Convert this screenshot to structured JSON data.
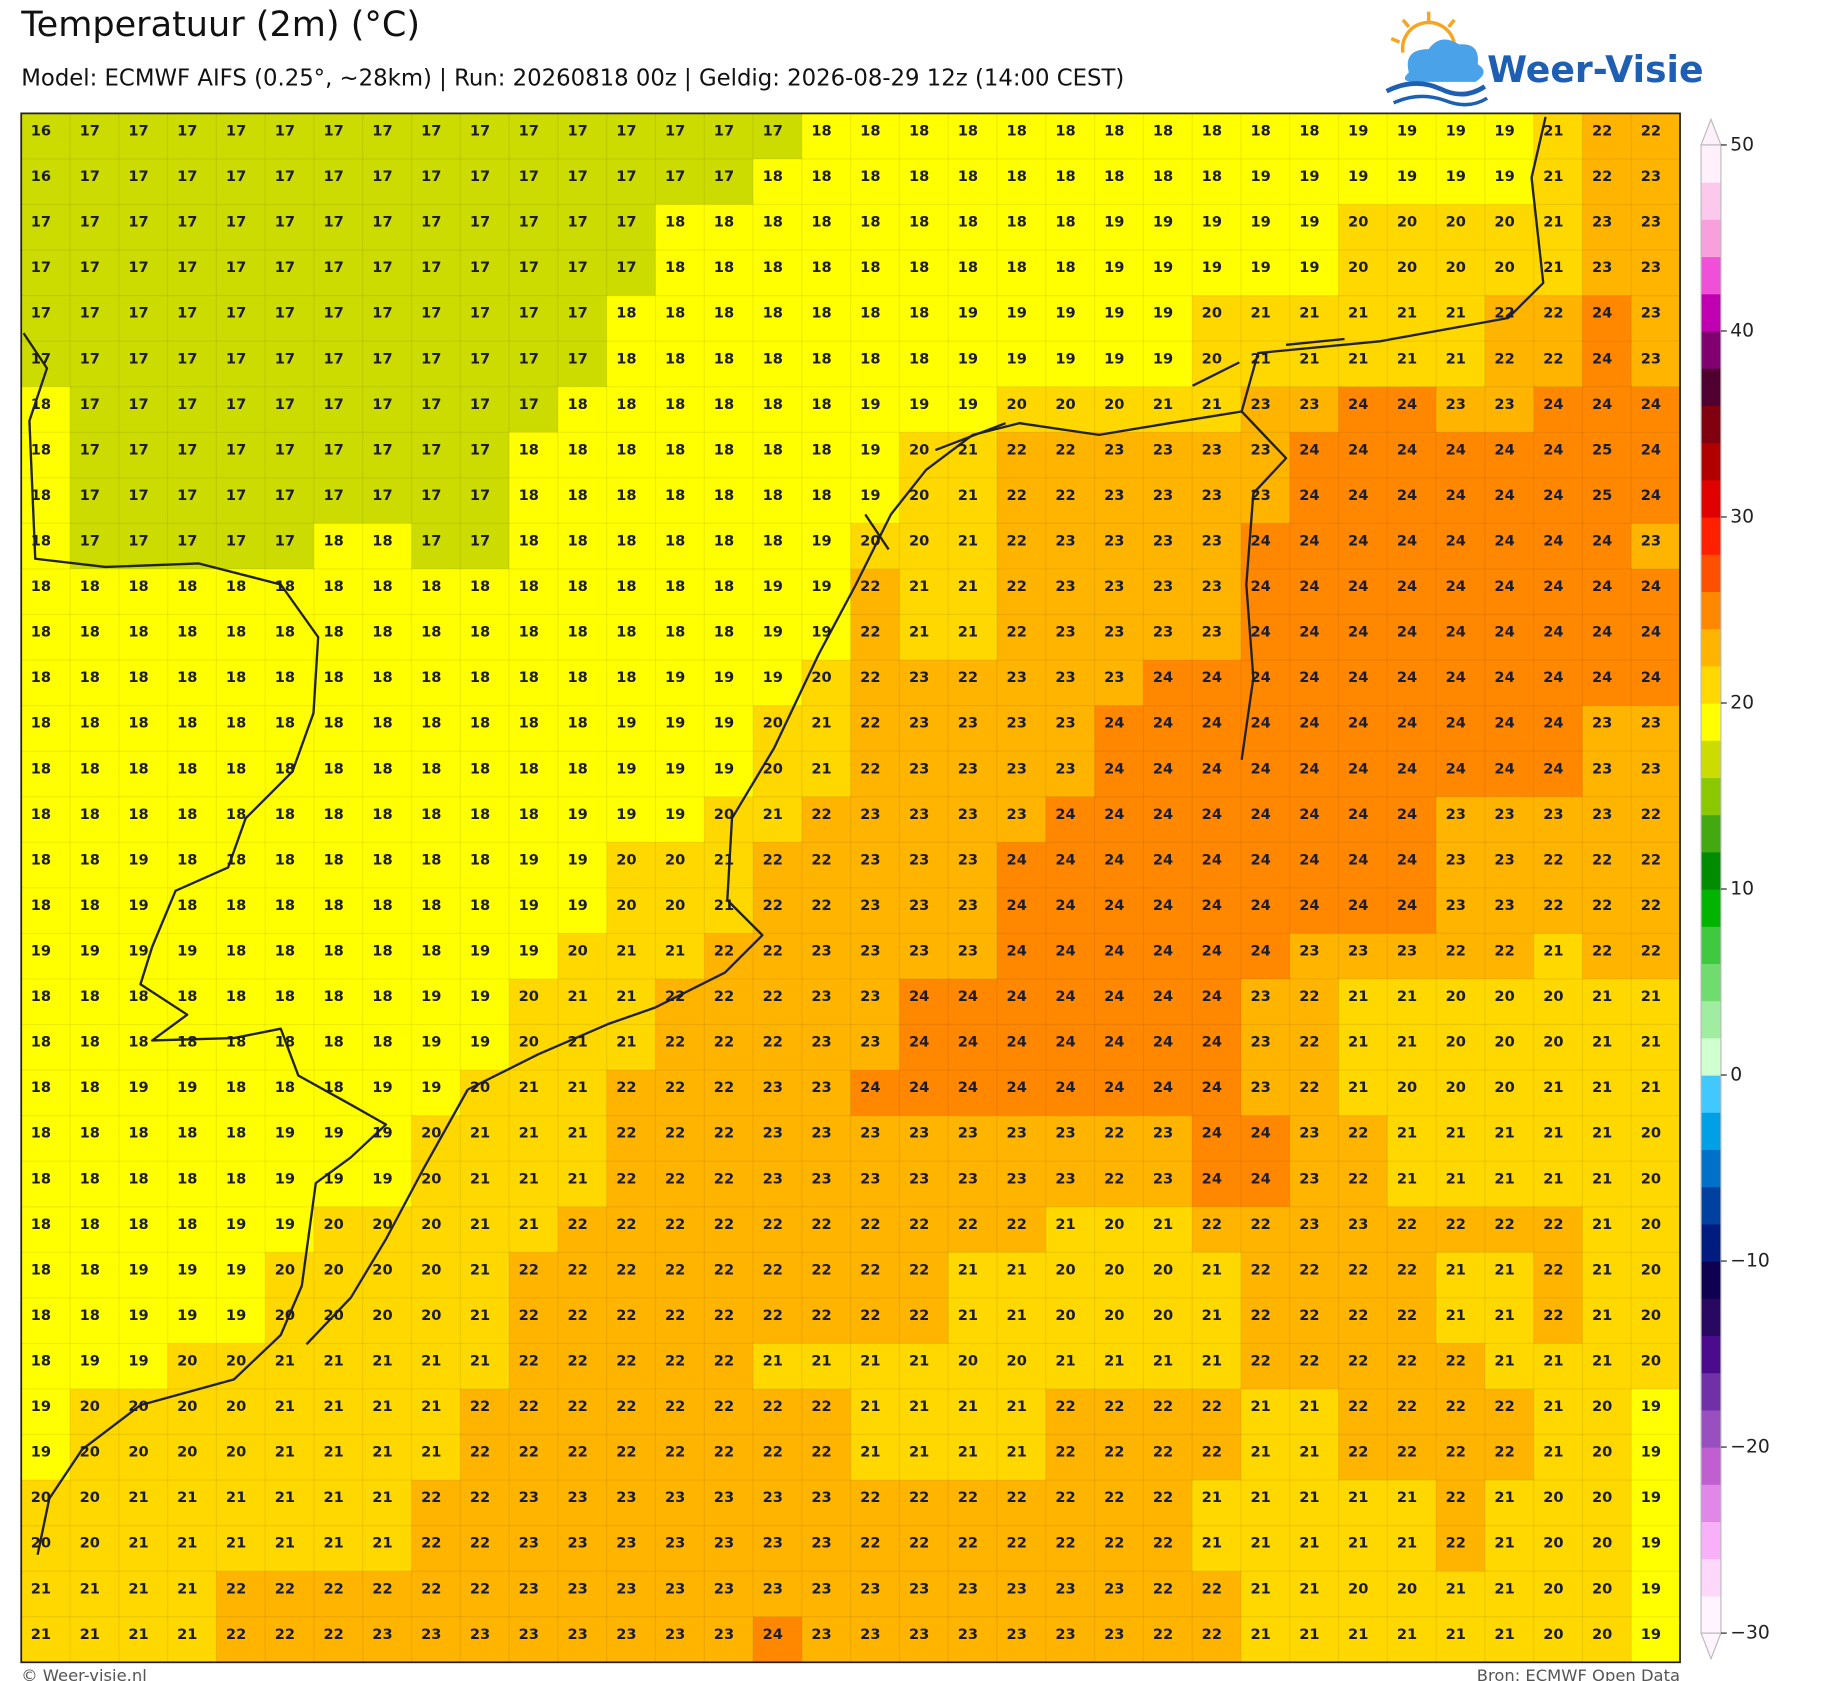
{
  "header": {
    "title": "Temperatuur (2m) (°C)",
    "subtitle": "Model: ECMWF AIFS (0.25°, ~28km)  |  Run: 20260818 00z  |  Geldig: 2026-08-29 12z (14:00 CEST)",
    "logo": "Weer-Visie"
  },
  "map": {
    "values": [
      [
        16,
        17,
        17,
        17,
        17,
        17,
        17,
        17,
        17,
        17,
        17,
        17,
        17,
        17,
        17,
        17,
        18,
        18,
        18,
        18,
        18,
        18,
        18,
        18,
        18,
        18,
        18,
        19,
        19,
        19,
        19,
        21,
        22,
        22
      ],
      [
        16,
        17,
        17,
        17,
        17,
        17,
        17,
        17,
        17,
        17,
        17,
        17,
        17,
        17,
        17,
        18,
        18,
        18,
        18,
        18,
        18,
        18,
        18,
        18,
        18,
        19,
        19,
        19,
        19,
        19,
        19,
        21,
        22,
        23
      ],
      [
        17,
        17,
        17,
        17,
        17,
        17,
        17,
        17,
        17,
        17,
        17,
        17,
        17,
        18,
        18,
        18,
        18,
        18,
        18,
        18,
        18,
        18,
        19,
        19,
        19,
        19,
        19,
        20,
        20,
        20,
        20,
        21,
        23,
        23
      ],
      [
        17,
        17,
        17,
        17,
        17,
        17,
        17,
        17,
        17,
        17,
        17,
        17,
        17,
        18,
        18,
        18,
        18,
        18,
        18,
        18,
        18,
        18,
        19,
        19,
        19,
        19,
        19,
        20,
        20,
        20,
        20,
        21,
        23,
        23
      ],
      [
        17,
        17,
        17,
        17,
        17,
        17,
        17,
        17,
        17,
        17,
        17,
        17,
        18,
        18,
        18,
        18,
        18,
        18,
        18,
        19,
        19,
        19,
        19,
        19,
        20,
        21,
        21,
        21,
        21,
        21,
        22,
        22,
        24,
        23
      ],
      [
        17,
        17,
        17,
        17,
        17,
        17,
        17,
        17,
        17,
        17,
        17,
        17,
        18,
        18,
        18,
        18,
        18,
        18,
        18,
        19,
        19,
        19,
        19,
        19,
        20,
        21,
        21,
        21,
        21,
        21,
        22,
        22,
        24,
        23
      ],
      [
        18,
        17,
        17,
        17,
        17,
        17,
        17,
        17,
        17,
        17,
        17,
        18,
        18,
        18,
        18,
        18,
        18,
        19,
        19,
        19,
        20,
        20,
        20,
        21,
        21,
        23,
        23,
        24,
        24,
        23,
        23,
        24,
        24,
        24
      ],
      [
        18,
        17,
        17,
        17,
        17,
        17,
        17,
        17,
        17,
        17,
        18,
        18,
        18,
        18,
        18,
        18,
        18,
        19,
        20,
        21,
        22,
        22,
        23,
        23,
        23,
        23,
        24,
        24,
        24,
        24,
        24,
        24,
        25,
        24
      ],
      [
        18,
        17,
        17,
        17,
        17,
        17,
        17,
        17,
        17,
        17,
        18,
        18,
        18,
        18,
        18,
        18,
        18,
        19,
        20,
        21,
        22,
        22,
        23,
        23,
        23,
        23,
        24,
        24,
        24,
        24,
        24,
        24,
        25,
        24
      ],
      [
        18,
        17,
        17,
        17,
        17,
        17,
        18,
        18,
        17,
        17,
        18,
        18,
        18,
        18,
        18,
        18,
        19,
        20,
        20,
        21,
        22,
        23,
        23,
        23,
        23,
        24,
        24,
        24,
        24,
        24,
        24,
        24,
        24,
        23
      ],
      [
        18,
        18,
        18,
        18,
        18,
        18,
        18,
        18,
        18,
        18,
        18,
        18,
        18,
        18,
        18,
        19,
        19,
        22,
        21,
        21,
        22,
        23,
        23,
        23,
        23,
        24,
        24,
        24,
        24,
        24,
        24,
        24,
        24,
        24
      ],
      [
        18,
        18,
        18,
        18,
        18,
        18,
        18,
        18,
        18,
        18,
        18,
        18,
        18,
        18,
        18,
        19,
        19,
        22,
        21,
        21,
        22,
        23,
        23,
        23,
        23,
        24,
        24,
        24,
        24,
        24,
        24,
        24,
        24,
        24
      ],
      [
        18,
        18,
        18,
        18,
        18,
        18,
        18,
        18,
        18,
        18,
        18,
        18,
        18,
        19,
        19,
        19,
        20,
        22,
        23,
        22,
        23,
        23,
        23,
        24,
        24,
        24,
        24,
        24,
        24,
        24,
        24,
        24,
        24,
        24
      ],
      [
        18,
        18,
        18,
        18,
        18,
        18,
        18,
        18,
        18,
        18,
        18,
        18,
        19,
        19,
        19,
        20,
        21,
        22,
        23,
        23,
        23,
        23,
        24,
        24,
        24,
        24,
        24,
        24,
        24,
        24,
        24,
        24,
        23,
        23
      ],
      [
        18,
        18,
        18,
        18,
        18,
        18,
        18,
        18,
        18,
        18,
        18,
        18,
        19,
        19,
        19,
        20,
        21,
        22,
        23,
        23,
        23,
        23,
        24,
        24,
        24,
        24,
        24,
        24,
        24,
        24,
        24,
        24,
        23,
        23
      ],
      [
        18,
        18,
        18,
        18,
        18,
        18,
        18,
        18,
        18,
        18,
        18,
        19,
        19,
        19,
        20,
        21,
        22,
        23,
        23,
        23,
        23,
        24,
        24,
        24,
        24,
        24,
        24,
        24,
        24,
        23,
        23,
        23,
        23,
        22
      ],
      [
        18,
        18,
        19,
        18,
        18,
        18,
        18,
        18,
        18,
        18,
        19,
        19,
        20,
        20,
        21,
        22,
        22,
        23,
        23,
        23,
        24,
        24,
        24,
        24,
        24,
        24,
        24,
        24,
        24,
        23,
        23,
        22,
        22,
        22
      ],
      [
        18,
        18,
        19,
        18,
        18,
        18,
        18,
        18,
        18,
        18,
        19,
        19,
        20,
        20,
        21,
        22,
        22,
        23,
        23,
        23,
        24,
        24,
        24,
        24,
        24,
        24,
        24,
        24,
        24,
        23,
        23,
        22,
        22,
        22
      ],
      [
        19,
        19,
        19,
        19,
        18,
        18,
        18,
        18,
        18,
        19,
        19,
        20,
        21,
        21,
        22,
        22,
        23,
        23,
        23,
        23,
        24,
        24,
        24,
        24,
        24,
        24,
        23,
        23,
        23,
        22,
        22,
        21,
        22,
        22
      ],
      [
        18,
        18,
        18,
        18,
        18,
        18,
        18,
        18,
        19,
        19,
        20,
        21,
        21,
        22,
        22,
        22,
        23,
        23,
        24,
        24,
        24,
        24,
        24,
        24,
        24,
        23,
        22,
        21,
        21,
        20,
        20,
        20,
        21,
        21
      ],
      [
        18,
        18,
        18,
        18,
        18,
        18,
        18,
        18,
        19,
        19,
        20,
        21,
        21,
        22,
        22,
        22,
        23,
        23,
        24,
        24,
        24,
        24,
        24,
        24,
        24,
        23,
        22,
        21,
        21,
        20,
        20,
        20,
        21,
        21
      ],
      [
        18,
        18,
        19,
        19,
        18,
        18,
        18,
        19,
        19,
        20,
        21,
        21,
        22,
        22,
        22,
        23,
        23,
        24,
        24,
        24,
        24,
        24,
        24,
        24,
        24,
        23,
        22,
        21,
        20,
        20,
        20,
        21,
        21,
        21
      ],
      [
        18,
        18,
        18,
        18,
        18,
        19,
        19,
        19,
        20,
        21,
        21,
        21,
        22,
        22,
        22,
        23,
        23,
        23,
        23,
        23,
        23,
        23,
        22,
        23,
        24,
        24,
        23,
        22,
        21,
        21,
        21,
        21,
        21,
        20
      ],
      [
        18,
        18,
        18,
        18,
        18,
        19,
        19,
        19,
        20,
        21,
        21,
        21,
        22,
        22,
        22,
        23,
        23,
        23,
        23,
        23,
        23,
        23,
        22,
        23,
        24,
        24,
        23,
        22,
        21,
        21,
        21,
        21,
        21,
        20
      ],
      [
        18,
        18,
        18,
        18,
        19,
        19,
        20,
        20,
        20,
        21,
        21,
        22,
        22,
        22,
        22,
        22,
        22,
        22,
        22,
        22,
        22,
        21,
        20,
        21,
        22,
        22,
        23,
        23,
        22,
        22,
        22,
        22,
        21,
        20
      ],
      [
        18,
        18,
        19,
        19,
        19,
        20,
        20,
        20,
        20,
        21,
        22,
        22,
        22,
        22,
        22,
        22,
        22,
        22,
        22,
        21,
        21,
        20,
        20,
        20,
        21,
        22,
        22,
        22,
        22,
        21,
        21,
        22,
        21,
        20
      ],
      [
        18,
        18,
        19,
        19,
        19,
        20,
        20,
        20,
        20,
        21,
        22,
        22,
        22,
        22,
        22,
        22,
        22,
        22,
        22,
        21,
        21,
        20,
        20,
        20,
        21,
        22,
        22,
        22,
        22,
        21,
        21,
        22,
        21,
        20
      ],
      [
        18,
        19,
        19,
        20,
        20,
        21,
        21,
        21,
        21,
        21,
        22,
        22,
        22,
        22,
        22,
        21,
        21,
        21,
        21,
        20,
        20,
        21,
        21,
        21,
        21,
        22,
        22,
        22,
        22,
        22,
        21,
        21,
        21,
        20
      ],
      [
        19,
        20,
        20,
        20,
        20,
        21,
        21,
        21,
        21,
        22,
        22,
        22,
        22,
        22,
        22,
        22,
        22,
        21,
        21,
        21,
        21,
        22,
        22,
        22,
        22,
        21,
        21,
        22,
        22,
        22,
        22,
        21,
        20,
        19
      ],
      [
        19,
        20,
        20,
        20,
        20,
        21,
        21,
        21,
        21,
        22,
        22,
        22,
        22,
        22,
        22,
        22,
        22,
        21,
        21,
        21,
        21,
        22,
        22,
        22,
        22,
        21,
        21,
        22,
        22,
        22,
        22,
        21,
        20,
        19
      ],
      [
        20,
        20,
        21,
        21,
        21,
        21,
        21,
        21,
        22,
        22,
        23,
        23,
        23,
        23,
        23,
        23,
        23,
        22,
        22,
        22,
        22,
        22,
        22,
        22,
        21,
        21,
        21,
        21,
        21,
        22,
        21,
        20,
        20,
        19
      ],
      [
        20,
        20,
        21,
        21,
        21,
        21,
        21,
        21,
        22,
        22,
        23,
        23,
        23,
        23,
        23,
        23,
        23,
        22,
        22,
        22,
        22,
        22,
        22,
        22,
        21,
        21,
        21,
        21,
        21,
        22,
        21,
        20,
        20,
        19
      ],
      [
        21,
        21,
        21,
        21,
        22,
        22,
        22,
        22,
        22,
        22,
        23,
        23,
        23,
        23,
        23,
        23,
        23,
        23,
        23,
        23,
        23,
        23,
        23,
        22,
        22,
        21,
        21,
        20,
        20,
        21,
        21,
        20,
        20,
        19
      ],
      [
        21,
        21,
        21,
        21,
        22,
        22,
        22,
        23,
        23,
        23,
        23,
        23,
        23,
        23,
        23,
        24,
        23,
        23,
        23,
        23,
        23,
        23,
        23,
        22,
        22,
        21,
        21,
        21,
        21,
        21,
        21,
        20,
        20,
        19
      ]
    ]
  },
  "colorbar": {
    "range": [
      -30,
      50
    ],
    "ticks": [
      50,
      40,
      30,
      20,
      10,
      0,
      {
        "value": -10,
        "label": "−10"
      },
      {
        "value": -20,
        "label": "−20"
      },
      {
        "value": -30,
        "label": "−30"
      }
    ],
    "colors": [
      "#fff4ff",
      "#fdd8fa",
      "#f8b0f8",
      "#e088e8",
      "#c060d0",
      "#9850c0",
      "#7030a8",
      "#4a0c8c",
      "#280860",
      "#100050",
      "#001c80",
      "#0040a0",
      "#0070c8",
      "#00a0e6",
      "#40c8ff",
      "#d0ffd0",
      "#a0eca0",
      "#70dc70",
      "#40c840",
      "#00b400",
      "#008c00",
      "#44a810",
      "#8cc800",
      "#ccdc00",
      "#ffff00",
      "#ffd800",
      "#ffb400",
      "#ff8800",
      "#ff5000",
      "#ff2000",
      "#e00000",
      "#b00000",
      "#800010",
      "#500030",
      "#800070",
      "#c000b0",
      "#f050d8",
      "#f8a0dc",
      "#fcc8ec",
      "#fff0fc"
    ]
  },
  "footer": {
    "credit": "© Weer-visie.nl",
    "source": "Bron: ECMWF Open Data"
  }
}
